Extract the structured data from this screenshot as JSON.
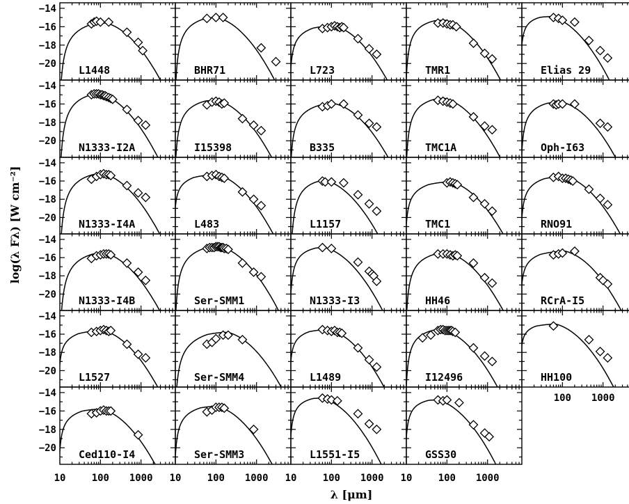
{
  "chart_data": {
    "type": "scatter",
    "layout": "small-multiples",
    "xlabel": "λ [μm]",
    "ylabel": "log(λ Fλ) [W cm⁻²]",
    "x_scale": "log",
    "xlim": [
      10,
      7000
    ],
    "ylim": [
      -21.8,
      -13.4
    ],
    "x_ticks": [
      10,
      100,
      1000
    ],
    "y_ticks": [
      -14,
      -16,
      -18,
      -20
    ],
    "panels": [
      {
        "name": "L1448",
        "peak": -15.6,
        "lam_peak": 140,
        "rise": 9,
        "points": [
          [
            60,
            -15.7
          ],
          [
            70,
            -15.5
          ],
          [
            80,
            -15.4
          ],
          [
            100,
            -15.5
          ],
          [
            160,
            -15.5
          ],
          [
            450,
            -16.6
          ],
          [
            850,
            -17.7
          ],
          [
            1100,
            -18.6
          ]
        ]
      },
      {
        "name": "BHR71",
        "peak": -15.0,
        "lam_peak": 110,
        "rise": 8,
        "points": [
          [
            60,
            -15.1
          ],
          [
            100,
            -15.0
          ],
          [
            150,
            -15.0
          ],
          [
            1300,
            -18.3
          ],
          [
            3000,
            -19.8
          ]
        ]
      },
      {
        "name": "L723",
        "peak": -15.9,
        "lam_peak": 120,
        "rise": 4,
        "points": [
          [
            60,
            -16.2
          ],
          [
            80,
            -16.1
          ],
          [
            100,
            -16.0
          ],
          [
            120,
            -15.9
          ],
          [
            140,
            -16.0
          ],
          [
            160,
            -16.1
          ],
          [
            180,
            -16.0
          ],
          [
            200,
            -16.1
          ],
          [
            450,
            -17.3
          ],
          [
            850,
            -18.4
          ],
          [
            1300,
            -19.0
          ]
        ]
      },
      {
        "name": "TMR1",
        "peak": -15.3,
        "lam_peak": 90,
        "rise": 6,
        "points": [
          [
            60,
            -15.6
          ],
          [
            80,
            -15.6
          ],
          [
            100,
            -15.7
          ],
          [
            120,
            -15.8
          ],
          [
            140,
            -15.8
          ],
          [
            170,
            -16.0
          ],
          [
            450,
            -17.8
          ],
          [
            850,
            -18.9
          ],
          [
            1300,
            -19.5
          ]
        ]
      },
      {
        "name": "Elias 29",
        "peak": -14.9,
        "lam_peak": 55,
        "rise": 3,
        "points": [
          [
            60,
            -15.0
          ],
          [
            80,
            -15.1
          ],
          [
            100,
            -15.3
          ],
          [
            200,
            -15.5
          ],
          [
            450,
            -17.5
          ],
          [
            850,
            -18.6
          ],
          [
            1300,
            -19.4
          ]
        ]
      },
      {
        "name": "N1333-I2A",
        "peak": -14.9,
        "lam_peak": 100,
        "rise": 10,
        "points": [
          [
            60,
            -15.0
          ],
          [
            70,
            -14.9
          ],
          [
            80,
            -14.9
          ],
          [
            90,
            -14.9
          ],
          [
            100,
            -15.0
          ],
          [
            110,
            -15.0
          ],
          [
            120,
            -15.1
          ],
          [
            130,
            -15.1
          ],
          [
            140,
            -15.2
          ],
          [
            160,
            -15.3
          ],
          [
            180,
            -15.4
          ],
          [
            200,
            -15.5
          ],
          [
            450,
            -16.6
          ],
          [
            850,
            -17.8
          ],
          [
            1300,
            -18.3
          ]
        ]
      },
      {
        "name": "I15398",
        "peak": -15.6,
        "lam_peak": 110,
        "rise": 7,
        "points": [
          [
            60,
            -16.1
          ],
          [
            80,
            -15.8
          ],
          [
            100,
            -15.7
          ],
          [
            120,
            -15.8
          ],
          [
            140,
            -16.0
          ],
          [
            160,
            -15.9
          ],
          [
            450,
            -17.6
          ],
          [
            850,
            -18.3
          ],
          [
            1300,
            -18.9
          ]
        ]
      },
      {
        "name": "B335",
        "peak": -16.0,
        "lam_peak": 130,
        "rise": 6,
        "points": [
          [
            60,
            -16.3
          ],
          [
            80,
            -16.2
          ],
          [
            100,
            -16.0
          ],
          [
            200,
            -16.0
          ],
          [
            450,
            -17.2
          ],
          [
            850,
            -18.1
          ],
          [
            1300,
            -18.5
          ]
        ]
      },
      {
        "name": "TMC1A",
        "peak": -15.4,
        "lam_peak": 90,
        "rise": 7,
        "points": [
          [
            60,
            -15.6
          ],
          [
            80,
            -15.7
          ],
          [
            100,
            -15.8
          ],
          [
            120,
            -15.9
          ],
          [
            140,
            -16.0
          ],
          [
            450,
            -17.4
          ],
          [
            850,
            -18.4
          ],
          [
            1300,
            -18.8
          ]
        ]
      },
      {
        "name": "Oph-I63",
        "peak": -15.8,
        "lam_peak": 100,
        "rise": 5,
        "points": [
          [
            60,
            -16.0
          ],
          [
            70,
            -16.1
          ],
          [
            80,
            -16.0
          ],
          [
            100,
            -16.0
          ],
          [
            200,
            -16.0
          ],
          [
            850,
            -18.1
          ],
          [
            1300,
            -18.5
          ]
        ]
      },
      {
        "name": "N1333-I4A",
        "peak": -15.2,
        "lam_peak": 120,
        "rise": 10,
        "points": [
          [
            60,
            -15.8
          ],
          [
            80,
            -15.5
          ],
          [
            100,
            -15.3
          ],
          [
            120,
            -15.2
          ],
          [
            140,
            -15.3
          ],
          [
            160,
            -15.3
          ],
          [
            180,
            -15.4
          ],
          [
            450,
            -16.5
          ],
          [
            850,
            -17.3
          ],
          [
            1300,
            -17.8
          ]
        ]
      },
      {
        "name": "L483",
        "peak": -15.3,
        "lam_peak": 110,
        "rise": 3,
        "points": [
          [
            60,
            -15.5
          ],
          [
            80,
            -15.4
          ],
          [
            100,
            -15.3
          ],
          [
            120,
            -15.5
          ],
          [
            140,
            -15.6
          ],
          [
            160,
            -15.7
          ],
          [
            450,
            -17.2
          ],
          [
            850,
            -18.0
          ],
          [
            1300,
            -18.7
          ]
        ]
      },
      {
        "name": "L1157",
        "peak": -15.9,
        "lam_peak": 70,
        "rise": 9,
        "points": [
          [
            60,
            -16.0
          ],
          [
            70,
            -16.1
          ],
          [
            100,
            -16.1
          ],
          [
            200,
            -16.2
          ],
          [
            450,
            -17.5
          ],
          [
            850,
            -18.5
          ],
          [
            1300,
            -19.3
          ]
        ]
      },
      {
        "name": "TMC1",
        "peak": -16.1,
        "lam_peak": 130,
        "rise": 4,
        "points": [
          [
            100,
            -16.2
          ],
          [
            120,
            -16.1
          ],
          [
            140,
            -16.2
          ],
          [
            160,
            -16.3
          ],
          [
            180,
            -16.4
          ],
          [
            450,
            -17.8
          ],
          [
            850,
            -18.5
          ],
          [
            1300,
            -19.3
          ]
        ]
      },
      {
        "name": "RNO91",
        "peak": -15.5,
        "lam_peak": 120,
        "rise": 4,
        "points": [
          [
            60,
            -15.6
          ],
          [
            80,
            -15.5
          ],
          [
            100,
            -15.7
          ],
          [
            120,
            -15.7
          ],
          [
            140,
            -15.8
          ],
          [
            160,
            -15.9
          ],
          [
            180,
            -16.0
          ],
          [
            450,
            -16.9
          ],
          [
            850,
            -17.9
          ],
          [
            1300,
            -18.6
          ]
        ]
      },
      {
        "name": "N1333-I4B",
        "peak": -15.5,
        "lam_peak": 130,
        "rise": 10,
        "points": [
          [
            60,
            -16.1
          ],
          [
            80,
            -15.8
          ],
          [
            100,
            -15.7
          ],
          [
            120,
            -15.6
          ],
          [
            140,
            -15.6
          ],
          [
            160,
            -15.6
          ],
          [
            180,
            -15.7
          ],
          [
            450,
            -16.6
          ],
          [
            850,
            -17.6
          ],
          [
            1300,
            -18.5
          ]
        ]
      },
      {
        "name": "Ser-SMM1",
        "peak": -14.8,
        "lam_peak": 130,
        "rise": 8,
        "points": [
          [
            60,
            -15.0
          ],
          [
            70,
            -14.9
          ],
          [
            80,
            -14.9
          ],
          [
            90,
            -14.9
          ],
          [
            100,
            -14.8
          ],
          [
            110,
            -14.8
          ],
          [
            120,
            -14.8
          ],
          [
            130,
            -14.9
          ],
          [
            140,
            -14.9
          ],
          [
            150,
            -14.9
          ],
          [
            160,
            -15.0
          ],
          [
            180,
            -15.0
          ],
          [
            200,
            -15.1
          ],
          [
            450,
            -16.6
          ],
          [
            850,
            -17.6
          ],
          [
            1300,
            -18.1
          ]
        ]
      },
      {
        "name": "N1333-I3",
        "peak": -14.9,
        "lam_peak": 70,
        "rise": 5,
        "points": [
          [
            60,
            -14.9
          ],
          [
            100,
            -15.0
          ],
          [
            450,
            -16.5
          ],
          [
            850,
            -17.5
          ],
          [
            1000,
            -17.8
          ],
          [
            1100,
            -18.0
          ],
          [
            1300,
            -18.6
          ]
        ]
      },
      {
        "name": "HH46",
        "peak": -15.5,
        "lam_peak": 110,
        "rise": 7,
        "points": [
          [
            60,
            -15.6
          ],
          [
            80,
            -15.6
          ],
          [
            100,
            -15.6
          ],
          [
            120,
            -15.7
          ],
          [
            140,
            -15.8
          ],
          [
            160,
            -15.7
          ],
          [
            180,
            -15.8
          ],
          [
            450,
            -16.6
          ],
          [
            850,
            -18.2
          ],
          [
            1300,
            -18.8
          ]
        ]
      },
      {
        "name": "RCrA-I5",
        "peak": -15.3,
        "lam_peak": 120,
        "rise": 3,
        "points": [
          [
            60,
            -15.7
          ],
          [
            80,
            -15.6
          ],
          [
            100,
            -15.5
          ],
          [
            200,
            -15.3
          ],
          [
            850,
            -18.2
          ],
          [
            1000,
            -18.5
          ],
          [
            1300,
            -18.9
          ]
        ]
      },
      {
        "name": "L1527",
        "peak": -15.6,
        "lam_peak": 120,
        "rise": 3,
        "points": [
          [
            60,
            -15.8
          ],
          [
            80,
            -15.7
          ],
          [
            100,
            -15.6
          ],
          [
            120,
            -15.5
          ],
          [
            140,
            -15.6
          ],
          [
            160,
            -15.7
          ],
          [
            180,
            -15.6
          ],
          [
            450,
            -17.1
          ],
          [
            850,
            -18.2
          ],
          [
            1300,
            -18.6
          ]
        ]
      },
      {
        "name": "Ser-SMM4",
        "peak": -15.8,
        "lam_peak": 200,
        "rise": 8,
        "points": [
          [
            60,
            -17.1
          ],
          [
            80,
            -16.9
          ],
          [
            100,
            -16.5
          ],
          [
            150,
            -16.1
          ],
          [
            200,
            -16.1
          ],
          [
            450,
            -16.6
          ]
        ]
      },
      {
        "name": "L1489",
        "peak": -15.5,
        "lam_peak": 90,
        "rise": 3,
        "points": [
          [
            60,
            -15.5
          ],
          [
            80,
            -15.6
          ],
          [
            100,
            -15.7
          ],
          [
            120,
            -15.6
          ],
          [
            140,
            -15.8
          ],
          [
            160,
            -15.8
          ],
          [
            180,
            -15.9
          ],
          [
            450,
            -17.5
          ],
          [
            850,
            -18.8
          ],
          [
            1300,
            -19.6
          ]
        ]
      },
      {
        "name": "I12496",
        "peak": -15.5,
        "lam_peak": 80,
        "rise": 6,
        "points": [
          [
            25,
            -16.4
          ],
          [
            40,
            -16.1
          ],
          [
            60,
            -15.6
          ],
          [
            70,
            -15.5
          ],
          [
            80,
            -15.5
          ],
          [
            90,
            -15.6
          ],
          [
            100,
            -15.6
          ],
          [
            110,
            -15.6
          ],
          [
            120,
            -15.6
          ],
          [
            130,
            -15.6
          ],
          [
            140,
            -15.7
          ],
          [
            160,
            -15.8
          ],
          [
            450,
            -17.5
          ],
          [
            850,
            -18.4
          ],
          [
            1300,
            -19.0
          ]
        ]
      },
      {
        "name": "HH100",
        "peak": -14.9,
        "lam_peak": 70,
        "rise": 2,
        "points": [
          [
            60,
            -15.1
          ],
          [
            450,
            -16.6
          ],
          [
            850,
            -17.9
          ],
          [
            1300,
            -18.6
          ]
        ]
      },
      {
        "name": "Ced110-I4",
        "peak": -15.8,
        "lam_peak": 110,
        "rise": 4,
        "points": [
          [
            60,
            -16.3
          ],
          [
            80,
            -16.2
          ],
          [
            100,
            -16.0
          ],
          [
            120,
            -15.9
          ],
          [
            140,
            -16.0
          ],
          [
            160,
            -16.0
          ],
          [
            180,
            -16.0
          ],
          [
            850,
            -18.6
          ]
        ]
      },
      {
        "name": "Ser-SMM3",
        "peak": -15.5,
        "lam_peak": 110,
        "rise": 5,
        "points": [
          [
            60,
            -16.1
          ],
          [
            80,
            -15.9
          ],
          [
            100,
            -15.6
          ],
          [
            120,
            -15.6
          ],
          [
            140,
            -15.6
          ],
          [
            160,
            -15.7
          ],
          [
            850,
            -18.0
          ]
        ]
      },
      {
        "name": "L1551-I5",
        "peak": -14.6,
        "lam_peak": 60,
        "rise": 4,
        "points": [
          [
            60,
            -14.6
          ],
          [
            80,
            -14.7
          ],
          [
            100,
            -14.8
          ],
          [
            140,
            -14.9
          ],
          [
            450,
            -16.3
          ],
          [
            850,
            -17.4
          ],
          [
            1300,
            -18.0
          ]
        ]
      },
      {
        "name": "GSS30",
        "peak": -14.8,
        "lam_peak": 60,
        "rise": 4,
        "points": [
          [
            60,
            -14.8
          ],
          [
            80,
            -14.9
          ],
          [
            100,
            -14.8
          ],
          [
            200,
            -15.1
          ],
          [
            450,
            -17.5
          ],
          [
            850,
            -18.4
          ],
          [
            1100,
            -18.8
          ]
        ]
      }
    ]
  }
}
